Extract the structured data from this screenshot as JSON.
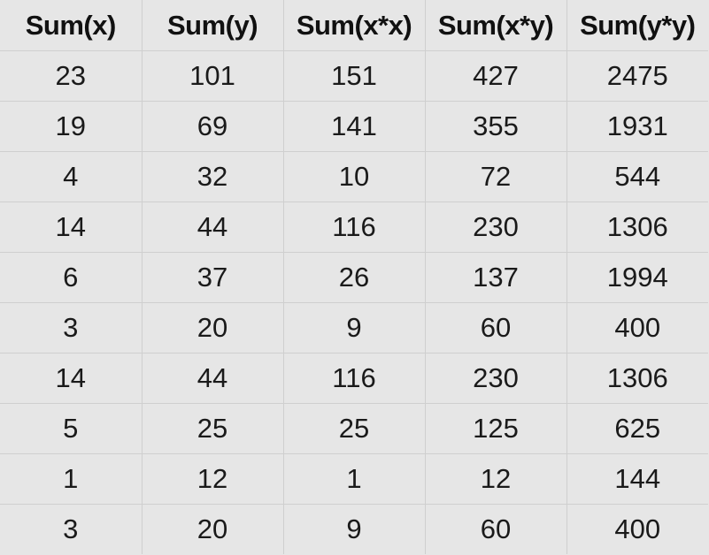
{
  "chart_data": {
    "type": "table",
    "columns": [
      "Sum(x)",
      "Sum(y)",
      "Sum(x*x)",
      "Sum(x*y)",
      "Sum(y*y)"
    ],
    "rows": [
      [
        "23",
        "101",
        "151",
        "427",
        "2475"
      ],
      [
        "19",
        "69",
        "141",
        "355",
        "1931"
      ],
      [
        "4",
        "32",
        "10",
        "72",
        "544"
      ],
      [
        "14",
        "44",
        "116",
        "230",
        "1306"
      ],
      [
        "6",
        "37",
        "26",
        "137",
        "1994"
      ],
      [
        "3",
        "20",
        "9",
        "60",
        "400"
      ],
      [
        "14",
        "44",
        "116",
        "230",
        "1306"
      ],
      [
        "5",
        "25",
        "25",
        "125",
        "625"
      ],
      [
        "1",
        "12",
        "1",
        "12",
        "144"
      ],
      [
        "3",
        "20",
        "9",
        "60",
        "400"
      ]
    ]
  }
}
